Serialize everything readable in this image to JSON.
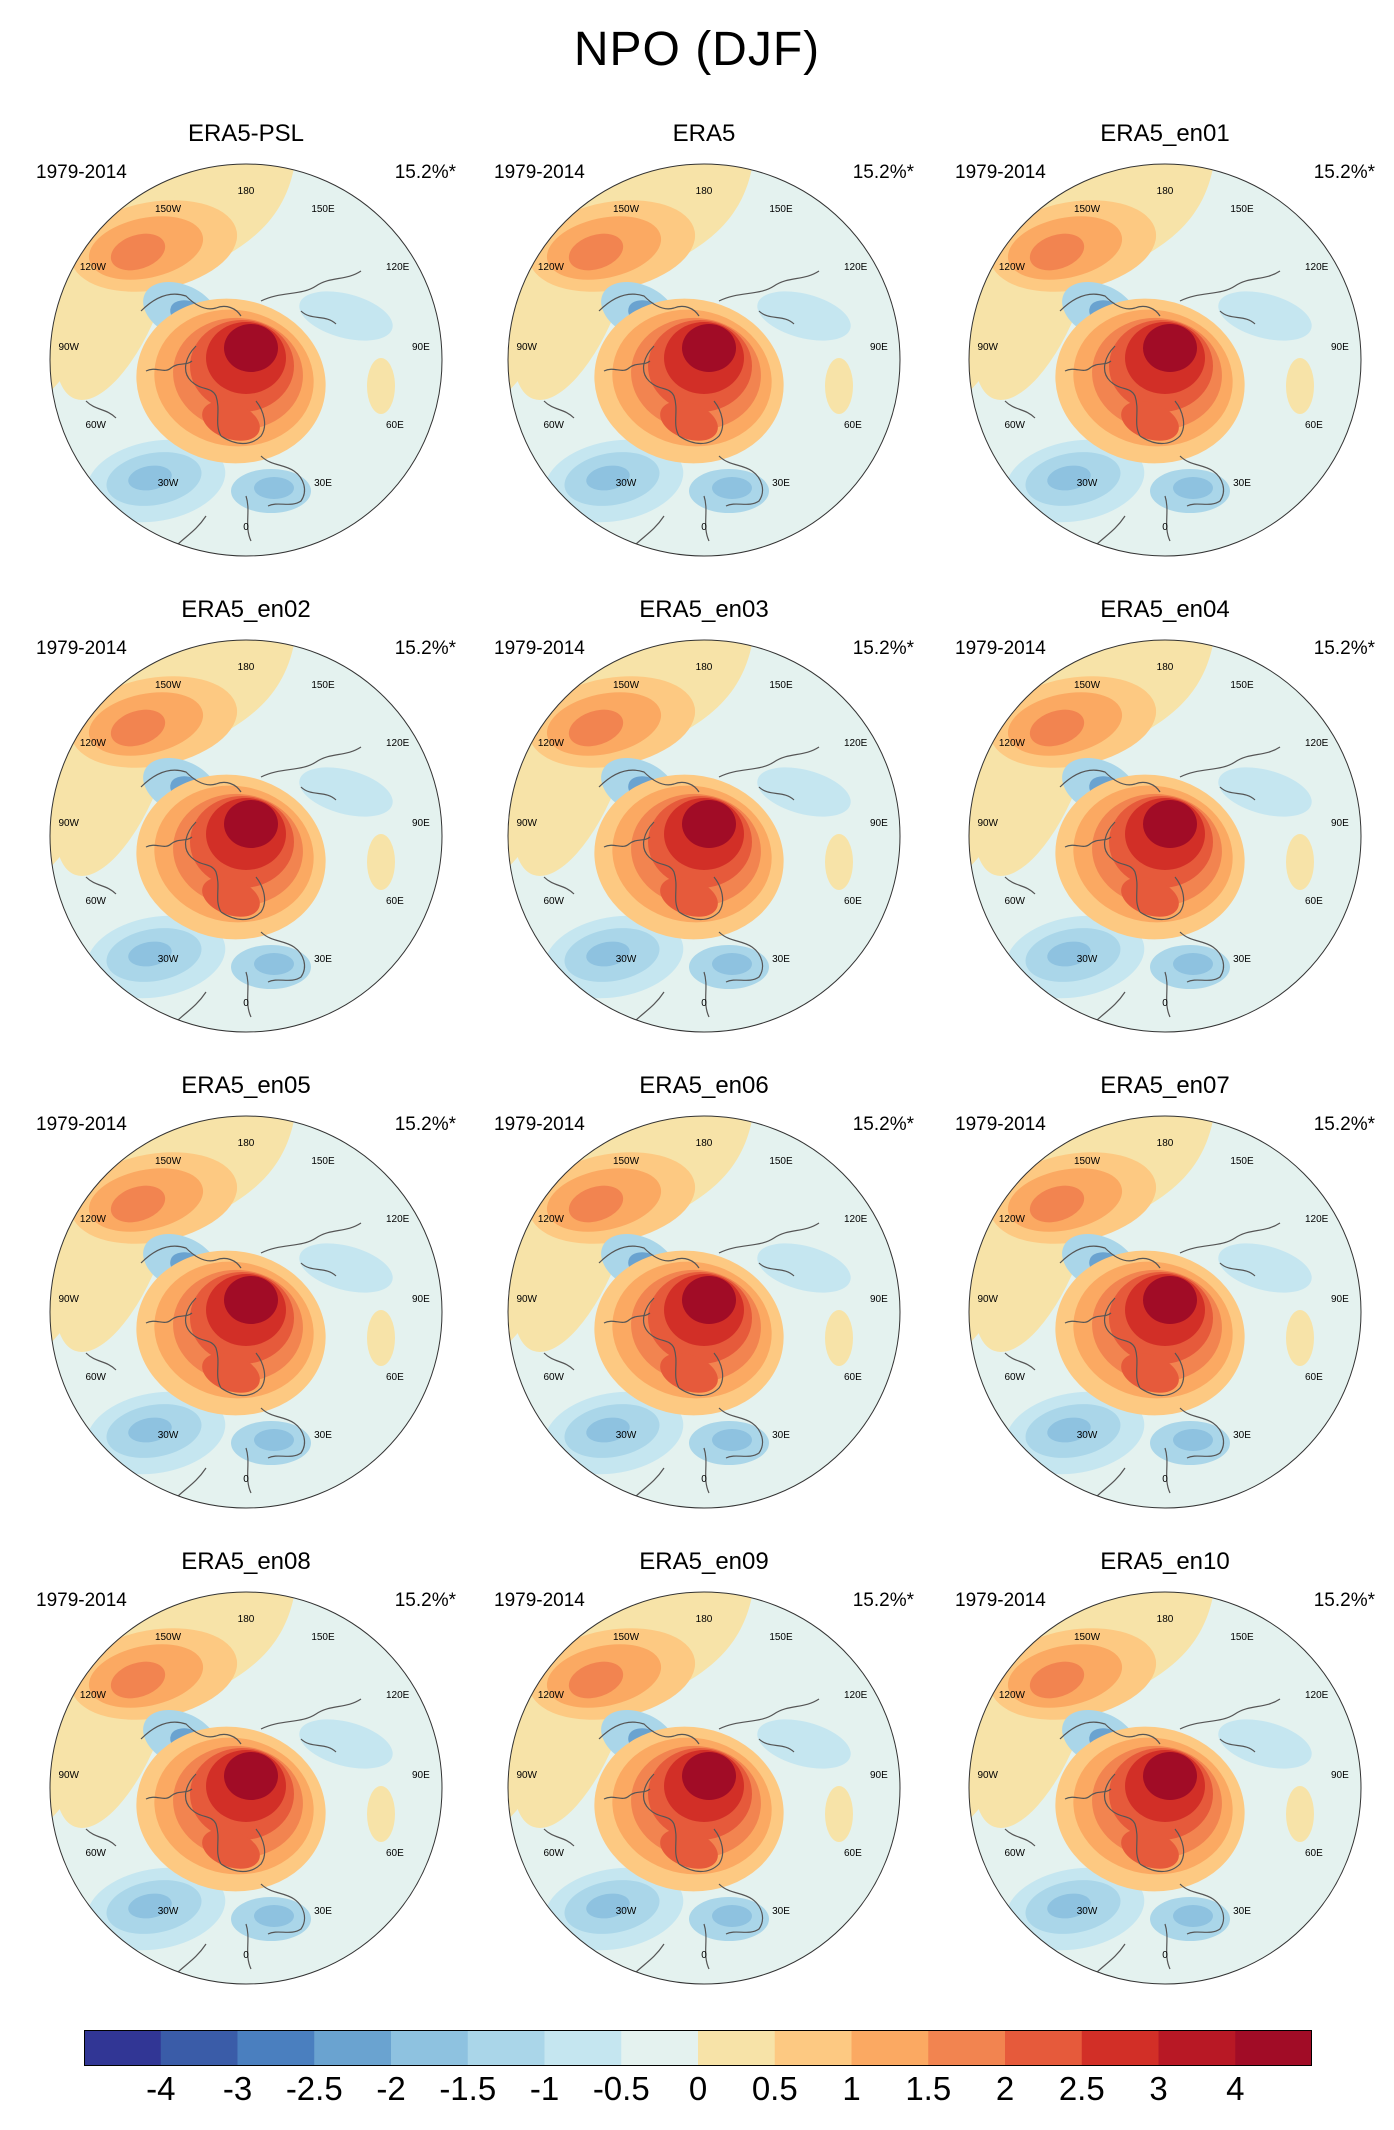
{
  "figure": {
    "title": "NPO (DJF)",
    "period_label": "1979-2014",
    "variance_label": "15.2%*",
    "longitude_labels": [
      "180",
      "150E",
      "120E",
      "90E",
      "60E",
      "30E",
      "0",
      "30W",
      "60W",
      "90W",
      "120W",
      "150W"
    ],
    "panels": [
      {
        "title": "ERA5-PSL"
      },
      {
        "title": "ERA5"
      },
      {
        "title": "ERA5_en01"
      },
      {
        "title": "ERA5_en02"
      },
      {
        "title": "ERA5_en03"
      },
      {
        "title": "ERA5_en04"
      },
      {
        "title": "ERA5_en05"
      },
      {
        "title": "ERA5_en06"
      },
      {
        "title": "ERA5_en07"
      },
      {
        "title": "ERA5_en08"
      },
      {
        "title": "ERA5_en09"
      },
      {
        "title": "ERA5_en10"
      }
    ]
  },
  "colorbar": {
    "levels": [
      "-4",
      "-3",
      "-2.5",
      "-2",
      "-1.5",
      "-1",
      "-0.5",
      "0",
      "0.5",
      "1",
      "1.5",
      "2",
      "2.5",
      "3",
      "4"
    ],
    "colors": [
      "#313695",
      "#3a5ca8",
      "#4a7fbf",
      "#6aa3d0",
      "#8ec2e0",
      "#aad6e9",
      "#c5e6f0",
      "#e4f2ef",
      "#f7e3a8",
      "#fdc982",
      "#fba962",
      "#f28450",
      "#e65a3b",
      "#d22f27",
      "#b81825",
      "#a10c26"
    ]
  },
  "map_features": {
    "colors": {
      "positive_outer": "#f7e3a8",
      "pacific_high_1": "#fdc982",
      "pacific_high_2": "#fba962",
      "pacific_high_3": "#f28450",
      "negative_1": "#c5e6f0",
      "negative_2": "#aad6e9",
      "negative_3": "#8ec2e0",
      "negative_4": "#6aa3d0",
      "arctic_1": "#fdc982",
      "arctic_2": "#fba962",
      "arctic_3": "#f28450",
      "arctic_4": "#e65a3b",
      "arctic_5": "#d22f27",
      "arctic_6": "#a10c26",
      "background": "#e4f2ef",
      "coast": "#555555"
    }
  }
}
